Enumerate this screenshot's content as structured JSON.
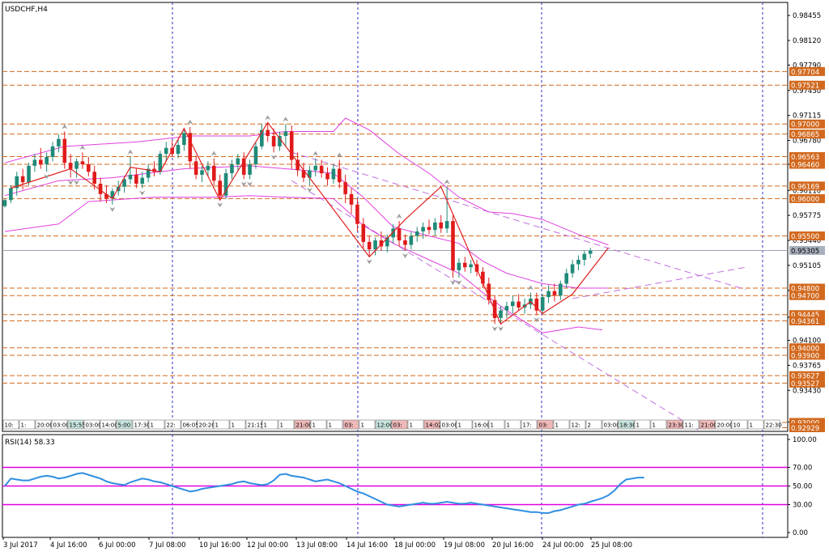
{
  "window": {
    "title": "USDCHF,H4"
  },
  "colors": {
    "background": "#ffffff",
    "grid": "#2e2ec8",
    "bull": "#1f8a78",
    "bear": "#e01a1a",
    "bollinger": "#e040e0",
    "zigzag": "#e02020",
    "channel": "#c070e0",
    "level_line": "#d2691e",
    "level_label_bg": "#d2691e",
    "current_price_bg": "#a8b0bc",
    "rsi_line": "#2e8ee0",
    "rsi_level": "#e000e0"
  },
  "chart_data": [
    {
      "type": "candlestick",
      "symbol": "USDCHF",
      "timeframe": "H4",
      "ylim": [
        0.9288,
        0.9863
      ],
      "price_axis_ticks": [
        "0.98455",
        "0.98120",
        "0.97790",
        "0.97450",
        "0.97115",
        "0.96780",
        "0.96460",
        "0.96110",
        "0.95775",
        "0.95440",
        "0.95105",
        "0.94770",
        "0.94410",
        "0.94100",
        "0.93765",
        "0.93430",
        "0.93005"
      ],
      "horizontal_levels": [
        "0.97704",
        "0.97521",
        "0.97000",
        "0.96865",
        "0.96563",
        "0.96460",
        "0.96169",
        "0.96000",
        "0.95500",
        "0.94800",
        "0.94700",
        "0.94445",
        "0.94361",
        "0.94000",
        "0.93900",
        "0.93627",
        "0.93527",
        "0.93000",
        "0.92929"
      ],
      "current_price": "0.95305",
      "date_labels": [
        "3 Jul 2017",
        "4 Jul 16:00",
        "6 Jul 00:00",
        "7 Jul 08:00",
        "10 Jul 16:00",
        "12 Jul 00:00",
        "13 Jul 08:00",
        "14 Jul 16:00",
        "18 Jul 00:00",
        "19 Jul 08:00",
        "20 Jul 16:00",
        "24 Jul 00:00",
        "25 Jul 08:00"
      ],
      "time_markers": [
        "10:",
        "1:",
        "20:00",
        "03:00",
        "15:55",
        "03:00",
        "14:00",
        "5:00",
        "17:30",
        "1",
        "22:",
        "06:05",
        "20:20",
        "1",
        "1",
        "21:15",
        "1",
        "1",
        "21:00",
        "1",
        "1",
        "03:",
        "1",
        "12:00",
        "03:",
        "1",
        "14:02",
        "03:00",
        "1",
        "16:00",
        "1",
        "1",
        "17:",
        "03:",
        "1",
        "12:",
        "2",
        "03:00",
        "18:30",
        "1",
        "1",
        "23:30",
        "11:",
        "21:00",
        "20:00",
        "10",
        "1",
        "22:30"
      ],
      "candles": [
        [
          0.959,
          0.96,
          0.9588,
          0.9598
        ],
        [
          0.9598,
          0.9618,
          0.9594,
          0.9614
        ],
        [
          0.9614,
          0.9636,
          0.9604,
          0.963
        ],
        [
          0.963,
          0.964,
          0.9612,
          0.9622
        ],
        [
          0.9622,
          0.9648,
          0.9618,
          0.9644
        ],
        [
          0.9644,
          0.966,
          0.9636,
          0.9652
        ],
        [
          0.9652,
          0.9668,
          0.964,
          0.9646
        ],
        [
          0.9646,
          0.9662,
          0.9636,
          0.9656
        ],
        [
          0.9656,
          0.9676,
          0.965,
          0.967
        ],
        [
          0.967,
          0.9686,
          0.9662,
          0.968
        ],
        [
          0.968,
          0.969,
          0.964,
          0.9648
        ],
        [
          0.9648,
          0.966,
          0.9628,
          0.964
        ],
        [
          0.964,
          0.9654,
          0.9628,
          0.965
        ],
        [
          0.965,
          0.9662,
          0.964,
          0.9646
        ],
        [
          0.9646,
          0.9656,
          0.963,
          0.9636
        ],
        [
          0.9636,
          0.9644,
          0.9612,
          0.962
        ],
        [
          0.962,
          0.9628,
          0.9596,
          0.9606
        ],
        [
          0.9606,
          0.9618,
          0.9594,
          0.96
        ],
        [
          0.96,
          0.9614,
          0.9592,
          0.961
        ],
        [
          0.961,
          0.9624,
          0.9604,
          0.9616
        ],
        [
          0.9616,
          0.963,
          0.9608,
          0.9626
        ],
        [
          0.9626,
          0.9656,
          0.962,
          0.9632
        ],
        [
          0.9632,
          0.964,
          0.9614,
          0.962
        ],
        [
          0.962,
          0.9636,
          0.9614,
          0.9628
        ],
        [
          0.9628,
          0.9646,
          0.9622,
          0.964
        ],
        [
          0.964,
          0.965,
          0.963,
          0.9636
        ],
        [
          0.9636,
          0.9664,
          0.9632,
          0.966
        ],
        [
          0.966,
          0.9676,
          0.965,
          0.9668
        ],
        [
          0.9668,
          0.9678,
          0.9656,
          0.966
        ],
        [
          0.966,
          0.968,
          0.9654,
          0.9672
        ],
        [
          0.9672,
          0.9694,
          0.9664,
          0.9688
        ],
        [
          0.9688,
          0.9696,
          0.964,
          0.965
        ],
        [
          0.965,
          0.9658,
          0.9626,
          0.9632
        ],
        [
          0.9632,
          0.9644,
          0.9622,
          0.9638
        ],
        [
          0.9638,
          0.965,
          0.963,
          0.9644
        ],
        [
          0.9644,
          0.9654,
          0.9618,
          0.9624
        ],
        [
          0.9624,
          0.9632,
          0.9598,
          0.9604
        ],
        [
          0.9604,
          0.964,
          0.96,
          0.9634
        ],
        [
          0.9634,
          0.9652,
          0.9626,
          0.9646
        ],
        [
          0.9646,
          0.966,
          0.9638,
          0.9654
        ],
        [
          0.9654,
          0.9662,
          0.9626,
          0.9632
        ],
        [
          0.9632,
          0.9652,
          0.9626,
          0.9646
        ],
        [
          0.9646,
          0.9676,
          0.964,
          0.967
        ],
        [
          0.967,
          0.97,
          0.9666,
          0.9692
        ],
        [
          0.9692,
          0.9702,
          0.9676,
          0.9684
        ],
        [
          0.9684,
          0.9694,
          0.9662,
          0.967
        ],
        [
          0.967,
          0.969,
          0.9664,
          0.9684
        ],
        [
          0.9684,
          0.97,
          0.967,
          0.969
        ],
        [
          0.969,
          0.9698,
          0.964,
          0.9652
        ],
        [
          0.9652,
          0.9662,
          0.963,
          0.9638
        ],
        [
          0.9638,
          0.9648,
          0.9622,
          0.9628
        ],
        [
          0.9628,
          0.9644,
          0.9618,
          0.9638
        ],
        [
          0.9638,
          0.9654,
          0.963,
          0.9644
        ],
        [
          0.9644,
          0.9652,
          0.9628,
          0.9634
        ],
        [
          0.9634,
          0.9642,
          0.9618,
          0.9626
        ],
        [
          0.9626,
          0.9646,
          0.962,
          0.964
        ],
        [
          0.964,
          0.9652,
          0.9614,
          0.9622
        ],
        [
          0.9622,
          0.9632,
          0.9594,
          0.9606
        ],
        [
          0.9606,
          0.9614,
          0.958,
          0.9592
        ],
        [
          0.9592,
          0.96,
          0.9556,
          0.9566
        ],
        [
          0.9566,
          0.9574,
          0.9532,
          0.9542
        ],
        [
          0.9542,
          0.955,
          0.9522,
          0.9532
        ],
        [
          0.9532,
          0.9548,
          0.9524,
          0.9544
        ],
        [
          0.9544,
          0.9556,
          0.953,
          0.9536
        ],
        [
          0.9536,
          0.9552,
          0.9528,
          0.9548
        ],
        [
          0.9548,
          0.9566,
          0.954,
          0.956
        ],
        [
          0.956,
          0.957,
          0.9536,
          0.9544
        ],
        [
          0.9544,
          0.9552,
          0.953,
          0.9538
        ],
        [
          0.9538,
          0.9556,
          0.9532,
          0.955
        ],
        [
          0.955,
          0.9562,
          0.9542,
          0.9556
        ],
        [
          0.9556,
          0.9568,
          0.9546,
          0.9562
        ],
        [
          0.9562,
          0.9572,
          0.9552,
          0.9558
        ],
        [
          0.9558,
          0.9574,
          0.955,
          0.9568
        ],
        [
          0.9568,
          0.9578,
          0.9554,
          0.956
        ],
        [
          0.956,
          0.9616,
          0.9554,
          0.957
        ],
        [
          0.957,
          0.9578,
          0.9494,
          0.9504
        ],
        [
          0.9504,
          0.952,
          0.9494,
          0.9514
        ],
        [
          0.9514,
          0.9522,
          0.9502,
          0.9508
        ],
        [
          0.9508,
          0.9518,
          0.95,
          0.9512
        ],
        [
          0.9512,
          0.9518,
          0.9496,
          0.9502
        ],
        [
          0.9502,
          0.9508,
          0.948,
          0.9486
        ],
        [
          0.9486,
          0.9494,
          0.9458,
          0.9464
        ],
        [
          0.9464,
          0.947,
          0.9432,
          0.944
        ],
        [
          0.944,
          0.9456,
          0.9432,
          0.945
        ],
        [
          0.945,
          0.9462,
          0.944,
          0.9456
        ],
        [
          0.9456,
          0.947,
          0.9446,
          0.9462
        ],
        [
          0.9462,
          0.9472,
          0.945,
          0.9454
        ],
        [
          0.9454,
          0.9466,
          0.9446,
          0.9458
        ],
        [
          0.9458,
          0.9474,
          0.9452,
          0.9466
        ],
        [
          0.9466,
          0.9474,
          0.9444,
          0.945
        ],
        [
          0.945,
          0.9472,
          0.9446,
          0.9468
        ],
        [
          0.9468,
          0.9484,
          0.946,
          0.9476
        ],
        [
          0.9476,
          0.9486,
          0.9462,
          0.947
        ],
        [
          0.947,
          0.949,
          0.9464,
          0.9486
        ],
        [
          0.9486,
          0.9506,
          0.948,
          0.95
        ],
        [
          0.95,
          0.9518,
          0.9494,
          0.9512
        ],
        [
          0.9512,
          0.9524,
          0.9504,
          0.9518
        ],
        [
          0.9518,
          0.953,
          0.951,
          0.9526
        ],
        [
          0.9526,
          0.9534,
          0.952,
          0.953
        ]
      ],
      "zigzag": [
        [
          1,
          0.9614
        ],
        [
          11,
          0.964
        ],
        [
          18,
          0.96
        ],
        [
          21,
          0.9642
        ],
        [
          26,
          0.9636
        ],
        [
          30,
          0.9694
        ],
        [
          36,
          0.9598
        ],
        [
          44,
          0.9702
        ],
        [
          61,
          0.9522
        ],
        [
          67,
          0.9572
        ],
        [
          73,
          0.9616
        ],
        [
          83,
          0.9432
        ],
        [
          88,
          0.9462
        ],
        [
          90,
          0.9446
        ],
        [
          95,
          0.9472
        ],
        [
          101,
          0.9534
        ]
      ],
      "bollinger": {
        "upper": [
          [
            0,
            0.9648
          ],
          [
            10,
            0.967
          ],
          [
            22,
            0.9676
          ],
          [
            31,
            0.9684
          ],
          [
            41,
            0.9684
          ],
          [
            47,
            0.969
          ],
          [
            55,
            0.969
          ],
          [
            57,
            0.9708
          ],
          [
            61,
            0.9692
          ],
          [
            66,
            0.966
          ],
          [
            71,
            0.9634
          ],
          [
            76,
            0.9602
          ],
          [
            81,
            0.9582
          ],
          [
            85,
            0.958
          ],
          [
            90,
            0.9572
          ],
          [
            96,
            0.9552
          ],
          [
            101,
            0.9538
          ]
        ],
        "middle": [
          [
            0,
            0.9604
          ],
          [
            9,
            0.9624
          ],
          [
            18,
            0.9628
          ],
          [
            30,
            0.964
          ],
          [
            41,
            0.9644
          ],
          [
            50,
            0.9638
          ],
          [
            55,
            0.9634
          ],
          [
            60,
            0.9602
          ],
          [
            65,
            0.9562
          ],
          [
            71,
            0.955
          ],
          [
            76,
            0.954
          ],
          [
            80,
            0.9516
          ],
          [
            84,
            0.95
          ],
          [
            90,
            0.9486
          ],
          [
            96,
            0.948
          ],
          [
            101,
            0.948
          ]
        ],
        "lower": [
          [
            0,
            0.9556
          ],
          [
            9,
            0.9566
          ],
          [
            14,
            0.9596
          ],
          [
            25,
            0.9602
          ],
          [
            35,
            0.9602
          ],
          [
            41,
            0.9604
          ],
          [
            47,
            0.9602
          ],
          [
            55,
            0.96
          ],
          [
            60,
            0.9564
          ],
          [
            65,
            0.954
          ],
          [
            71,
            0.9518
          ],
          [
            76,
            0.95
          ],
          [
            80,
            0.9474
          ],
          [
            84,
            0.945
          ],
          [
            90,
            0.942
          ],
          [
            96,
            0.9428
          ],
          [
            100,
            0.9424
          ]
        ]
      },
      "channel_lines": [
        [
          [
            48,
            0.9662
          ],
          [
            124,
            0.9478
          ]
        ],
        [
          [
            48,
            0.9624
          ],
          [
            116,
            0.929
          ]
        ],
        [
          [
            95,
            0.9466
          ],
          [
            124,
            0.9508
          ]
        ]
      ]
    },
    {
      "type": "line",
      "title": "RSI(14) 58.33",
      "ylim": [
        0,
        100
      ],
      "y_ticks": [
        "100.00",
        "70.00",
        "50.00",
        "30.00",
        "0.00"
      ],
      "levels": [
        70,
        50,
        30
      ],
      "series": [
        {
          "values": [
            50,
            58,
            57,
            56,
            56,
            58,
            60,
            61,
            60,
            58,
            59,
            61,
            63,
            64,
            62,
            60,
            58,
            55,
            53,
            52,
            51,
            54,
            56,
            58,
            57,
            55,
            54,
            52,
            50,
            48,
            46,
            44,
            45,
            47,
            48,
            49,
            50,
            51,
            52,
            54,
            55,
            53,
            52,
            51,
            52,
            56,
            62,
            63,
            61,
            60,
            59,
            57,
            55,
            56,
            57,
            55,
            53,
            50,
            47,
            44,
            42,
            39,
            36,
            33,
            30,
            29,
            28,
            29,
            30,
            31,
            32,
            31,
            31,
            32,
            33,
            32,
            31,
            31,
            32,
            31,
            30,
            29,
            28,
            27,
            26,
            25,
            24,
            23,
            22,
            22,
            21,
            21,
            23,
            24,
            26,
            28,
            30,
            31,
            33,
            35,
            37,
            40,
            45,
            52,
            57,
            58,
            59,
            59
          ]
        }
      ]
    }
  ]
}
